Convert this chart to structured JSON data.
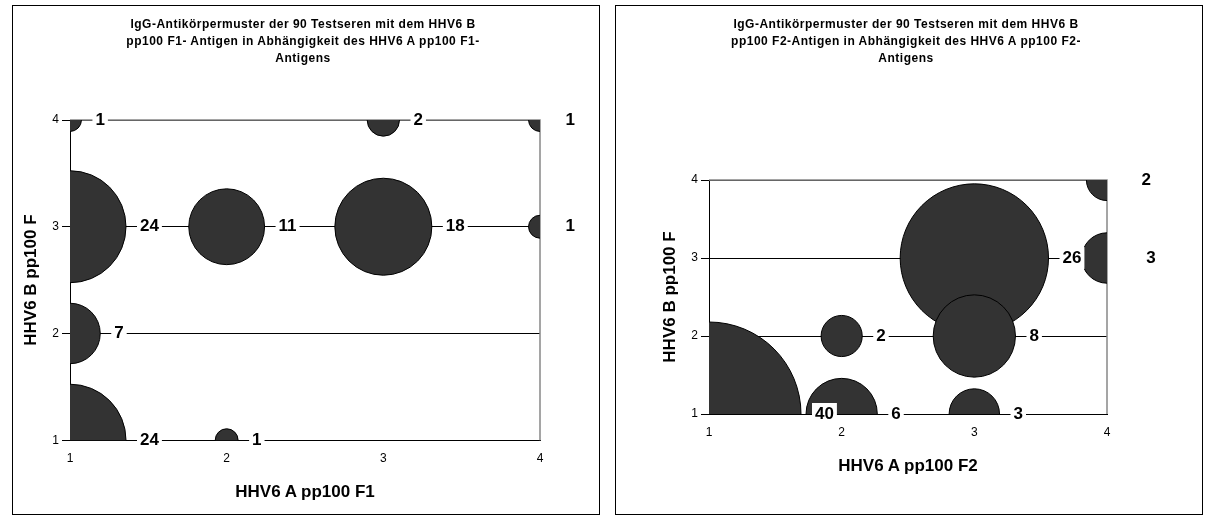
{
  "chart_data": [
    {
      "type": "bubble",
      "title": "IgG-Antikörpermuster der 90 Testseren mit dem HHV6 B pp100 F1- Antigen in Abhängigkeit des HHV6 A pp100 F1-Antigens",
      "xlabel": "HHV6 A pp100 F1",
      "ylabel": "HHV6 B pp100 F",
      "xlim": [
        1,
        4
      ],
      "xticks": [
        1,
        2,
        3,
        4
      ],
      "ylim": [
        1,
        4
      ],
      "yticks": [
        1,
        2,
        3,
        4
      ],
      "grid": "y",
      "legend": false,
      "series": [
        {
          "color": "#333333",
          "x": [
            1,
            3,
            4,
            1,
            2,
            3,
            4,
            1,
            1,
            2
          ],
          "values": [
            4,
            4,
            4,
            3,
            3,
            3,
            3,
            2,
            1,
            1
          ],
          "sizes": [
            1,
            2,
            1,
            24,
            11,
            18,
            1,
            7,
            24,
            1
          ],
          "value_labels": [
            "1",
            "2",
            "1",
            "24",
            "11",
            "18",
            "1",
            "7",
            "24",
            "1"
          ]
        }
      ]
    },
    {
      "type": "bubble",
      "title": "IgG-Antikörpermuster der 90 Testseren mit dem HHV6 B pp100 F2-Antigen in Abhängigkeit des HHV6 A pp100 F2-Antigens",
      "xlabel": "HHV6 A pp100 F2",
      "ylabel": "HHV6 B pp100 F",
      "xlim": [
        1,
        4
      ],
      "xticks": [
        1,
        2,
        3,
        4
      ],
      "ylim": [
        1,
        4
      ],
      "yticks": [
        1,
        2,
        3,
        4
      ],
      "grid": "y",
      "legend": false,
      "series": [
        {
          "color": "#333333",
          "x": [
            4,
            3,
            4,
            2,
            3,
            1,
            2,
            3
          ],
          "values": [
            4,
            3,
            3,
            2,
            2,
            1,
            1,
            1
          ],
          "sizes": [
            2,
            26,
            3,
            2,
            8,
            40,
            6,
            3
          ],
          "value_labels": [
            "2",
            "26",
            "3",
            "2",
            "8",
            "40",
            "6",
            "3"
          ]
        }
      ]
    }
  ]
}
